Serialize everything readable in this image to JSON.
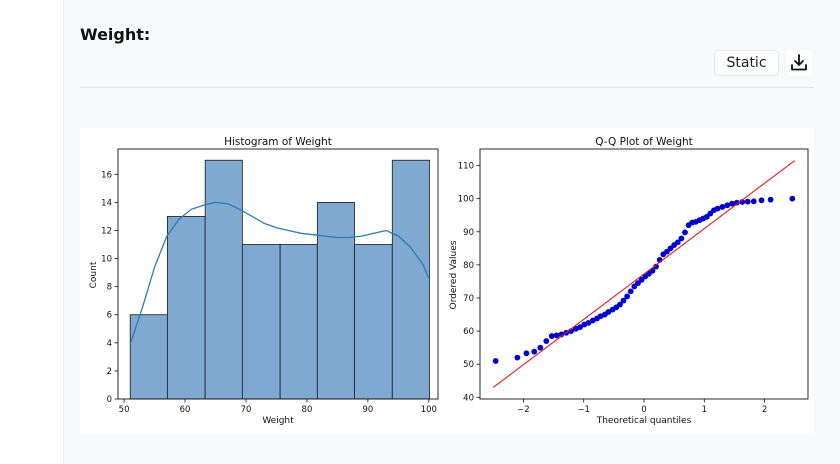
{
  "section": {
    "title": "Weight:"
  },
  "toolbar": {
    "static_label": "Static",
    "download_icon": "download-icon"
  },
  "chart_data": [
    {
      "type": "bar",
      "title": "Histogram of Weight",
      "xlabel": "Weight",
      "ylabel": "Count",
      "bin_edges": [
        51,
        57.1,
        63.3,
        69.4,
        75.6,
        81.7,
        87.8,
        94.0,
        100.1
      ],
      "values": [
        6,
        13,
        17,
        11,
        11,
        14,
        11,
        17
      ],
      "kde": [
        [
          51,
          3.9
        ],
        [
          53,
          6.5
        ],
        [
          55,
          9.4
        ],
        [
          57,
          11.6
        ],
        [
          59,
          12.8
        ],
        [
          61,
          13.5
        ],
        [
          63,
          13.8
        ],
        [
          65,
          14
        ],
        [
          67,
          13.9
        ],
        [
          69,
          13.5
        ],
        [
          71,
          13.0
        ],
        [
          73,
          12.5
        ],
        [
          75,
          12.2
        ],
        [
          77,
          12.0
        ],
        [
          79,
          11.8
        ],
        [
          81,
          11.7
        ],
        [
          83,
          11.6
        ],
        [
          85,
          11.5
        ],
        [
          87,
          11.5
        ],
        [
          89,
          11.6
        ],
        [
          91,
          11.8
        ],
        [
          93,
          12
        ],
        [
          95,
          11.6
        ],
        [
          97,
          10.8
        ],
        [
          99,
          9.6
        ],
        [
          100,
          8.6
        ]
      ],
      "xlim": [
        49,
        101.5
      ],
      "ylim": [
        0,
        17.8
      ],
      "xticks": [
        50,
        60,
        70,
        80,
        90,
        100
      ],
      "yticks": [
        0,
        2,
        4,
        6,
        8,
        10,
        12,
        14,
        16
      ],
      "colors": {
        "bar": "#7fa9d0",
        "edge": "#1b1b1b",
        "kde": "#2f7bb5"
      }
    },
    {
      "type": "scatter",
      "title": "Q-Q Plot of Weight",
      "xlabel": "Theoretical quantiles",
      "ylabel": "Ordered Values",
      "points": [
        [
          -2.46,
          51
        ],
        [
          -2.1,
          52
        ],
        [
          -1.95,
          53.3
        ],
        [
          -1.82,
          53.8
        ],
        [
          -1.72,
          55
        ],
        [
          -1.62,
          57
        ],
        [
          -1.53,
          58.5
        ],
        [
          -1.45,
          58.7
        ],
        [
          -1.37,
          59
        ],
        [
          -1.29,
          59.5
        ],
        [
          -1.21,
          60
        ],
        [
          -1.13,
          60.7
        ],
        [
          -1.06,
          61.2
        ],
        [
          -0.99,
          62
        ],
        [
          -0.92,
          62.5
        ],
        [
          -0.85,
          63.2
        ],
        [
          -0.78,
          63.8
        ],
        [
          -0.72,
          64.5
        ],
        [
          -0.65,
          65
        ],
        [
          -0.59,
          65.8
        ],
        [
          -0.52,
          66.5
        ],
        [
          -0.46,
          67.2
        ],
        [
          -0.4,
          68
        ],
        [
          -0.34,
          69.2
        ],
        [
          -0.28,
          70.5
        ],
        [
          -0.22,
          72
        ],
        [
          -0.16,
          73.5
        ],
        [
          -0.1,
          74.5
        ],
        [
          -0.04,
          75.5
        ],
        [
          0.02,
          76.5
        ],
        [
          0.08,
          77.3
        ],
        [
          0.14,
          78.2
        ],
        [
          0.2,
          79.5
        ],
        [
          0.26,
          81.5
        ],
        [
          0.32,
          83.2
        ],
        [
          0.38,
          84
        ],
        [
          0.44,
          85
        ],
        [
          0.5,
          86
        ],
        [
          0.56,
          86.8
        ],
        [
          0.62,
          88
        ],
        [
          0.68,
          89.8
        ],
        [
          0.74,
          92
        ],
        [
          0.8,
          92.8
        ],
        [
          0.86,
          93
        ],
        [
          0.92,
          93.5
        ],
        [
          0.98,
          94
        ],
        [
          1.04,
          94.5
        ],
        [
          1.1,
          95.5
        ],
        [
          1.16,
          96.5
        ],
        [
          1.22,
          97
        ],
        [
          1.3,
          97.5
        ],
        [
          1.38,
          98
        ],
        [
          1.46,
          98.5
        ],
        [
          1.54,
          98.8
        ],
        [
          1.63,
          99
        ],
        [
          1.72,
          99.1
        ],
        [
          1.82,
          99.2
        ],
        [
          1.95,
          99.5
        ],
        [
          2.1,
          99.7
        ],
        [
          2.46,
          100
        ]
      ],
      "fit_line": [
        [
          -2.5,
          43
        ],
        [
          2.5,
          111.5
        ]
      ],
      "xlim": [
        -2.72,
        2.72
      ],
      "ylim": [
        39.5,
        115
      ],
      "xticks": [
        -2,
        -1,
        0,
        1,
        2
      ],
      "xtick_labels": [
        "−2",
        "−1",
        "0",
        "1",
        "2"
      ],
      "yticks": [
        40,
        50,
        60,
        70,
        80,
        90,
        100,
        110
      ],
      "colors": {
        "point": "#0000cc",
        "line": "#e31a1c"
      }
    }
  ]
}
